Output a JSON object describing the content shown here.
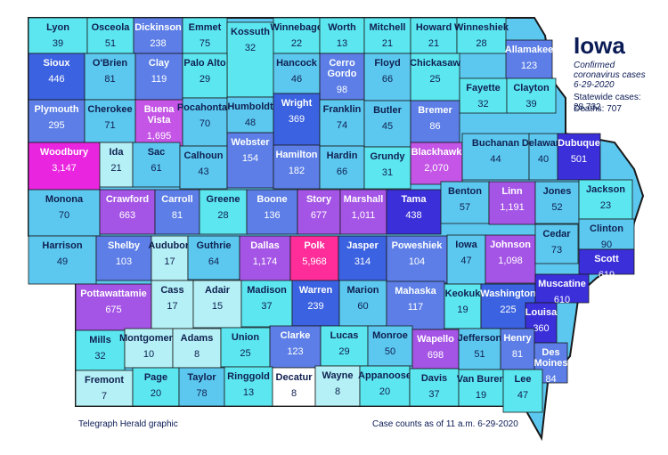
{
  "title": "Iowa",
  "subtitle_line1": "Confirmed",
  "subtitle_line2": "coronavirus cases",
  "date": "6-29-2020",
  "statewide_label": "Statewide cases: 28,732",
  "deaths_label": "Deaths:  707",
  "credit": "Telegraph Herald graphic",
  "as_of": "Case counts as of  11 a.m.  6-29-2020",
  "colors": {
    "border": "#1a1a1a",
    "text": "#0b1b55"
  },
  "counties": [
    {
      "name": "Lyon",
      "cases": "39"
    },
    {
      "name": "Osceola",
      "cases": "51"
    },
    {
      "name": "Dickinson",
      "cases": "238"
    },
    {
      "name": "Emmet",
      "cases": "75"
    },
    {
      "name": "Kossuth",
      "cases": "32"
    },
    {
      "name": "Winnebago",
      "cases": "22"
    },
    {
      "name": "Worth",
      "cases": "13"
    },
    {
      "name": "Mitchell",
      "cases": "21"
    },
    {
      "name": "Howard",
      "cases": "21"
    },
    {
      "name": "Winneshiek",
      "cases": "28"
    },
    {
      "name": "Allamakee",
      "cases": "123"
    },
    {
      "name": "Sioux",
      "cases": "446"
    },
    {
      "name": "O'Brien",
      "cases": "81"
    },
    {
      "name": "Clay",
      "cases": "119"
    },
    {
      "name": "Palo Alto",
      "cases": "29"
    },
    {
      "name": "Hancock",
      "cases": "46"
    },
    {
      "name": "Cerro Gordo",
      "cases": "98"
    },
    {
      "name": "Floyd",
      "cases": "66"
    },
    {
      "name": "Chickasaw",
      "cases": "25"
    },
    {
      "name": "Fayette",
      "cases": "32"
    },
    {
      "name": "Clayton",
      "cases": "39"
    },
    {
      "name": "Plymouth",
      "cases": "295"
    },
    {
      "name": "Cherokee",
      "cases": "71"
    },
    {
      "name": "Buena Vista",
      "cases": "1,695"
    },
    {
      "name": "Pocahontas",
      "cases": "70"
    },
    {
      "name": "Humboldt",
      "cases": "48"
    },
    {
      "name": "Wright",
      "cases": "369"
    },
    {
      "name": "Franklin",
      "cases": "74"
    },
    {
      "name": "Butler",
      "cases": "45"
    },
    {
      "name": "Bremer",
      "cases": "86"
    },
    {
      "name": "Woodbury",
      "cases": "3,147"
    },
    {
      "name": "Ida",
      "cases": "21"
    },
    {
      "name": "Sac",
      "cases": "61"
    },
    {
      "name": "Calhoun",
      "cases": "43"
    },
    {
      "name": "Webster",
      "cases": "154"
    },
    {
      "name": "Hamilton",
      "cases": "182"
    },
    {
      "name": "Hardin",
      "cases": "66"
    },
    {
      "name": "Grundy",
      "cases": "31"
    },
    {
      "name": "Blackhawk",
      "cases": "2,070"
    },
    {
      "name": "Buchanan",
      "cases": "44"
    },
    {
      "name": "Delaware",
      "cases": "40"
    },
    {
      "name": "Dubuque",
      "cases": "501"
    },
    {
      "name": "Monona",
      "cases": "70"
    },
    {
      "name": "Crawford",
      "cases": "663"
    },
    {
      "name": "Carroll",
      "cases": "81"
    },
    {
      "name": "Greene",
      "cases": "28"
    },
    {
      "name": "Boone",
      "cases": "136"
    },
    {
      "name": "Story",
      "cases": "677"
    },
    {
      "name": "Marshall",
      "cases": "1,011"
    },
    {
      "name": "Tama",
      "cases": "438"
    },
    {
      "name": "Benton",
      "cases": "57"
    },
    {
      "name": "Linn",
      "cases": "1,191"
    },
    {
      "name": "Jones",
      "cases": "52"
    },
    {
      "name": "Jackson",
      "cases": "23"
    },
    {
      "name": "Harrison",
      "cases": "49"
    },
    {
      "name": "Shelby",
      "cases": "103"
    },
    {
      "name": "Audubon",
      "cases": "17"
    },
    {
      "name": "Guthrie",
      "cases": "64"
    },
    {
      "name": "Dallas",
      "cases": "1,174"
    },
    {
      "name": "Polk",
      "cases": "5,968"
    },
    {
      "name": "Jasper",
      "cases": "314"
    },
    {
      "name": "Poweshiek",
      "cases": "104"
    },
    {
      "name": "Iowa",
      "cases": "47"
    },
    {
      "name": "Johnson",
      "cases": "1,098"
    },
    {
      "name": "Cedar",
      "cases": "73"
    },
    {
      "name": "Clinton",
      "cases": "90"
    },
    {
      "name": "Scott",
      "cases": "619"
    },
    {
      "name": "Pottawattamie",
      "cases": "675"
    },
    {
      "name": "Cass",
      "cases": "17"
    },
    {
      "name": "Adair",
      "cases": "15"
    },
    {
      "name": "Madison",
      "cases": "37"
    },
    {
      "name": "Warren",
      "cases": "239"
    },
    {
      "name": "Marion",
      "cases": "60"
    },
    {
      "name": "Mahaska",
      "cases": "117"
    },
    {
      "name": "Keokuk",
      "cases": "19"
    },
    {
      "name": "Washington",
      "cases": "225"
    },
    {
      "name": "Muscatine",
      "cases": "610"
    },
    {
      "name": "Louisa",
      "cases": "360"
    },
    {
      "name": "Mills",
      "cases": "32"
    },
    {
      "name": "Montgomery",
      "cases": "10"
    },
    {
      "name": "Adams",
      "cases": "8"
    },
    {
      "name": "Union",
      "cases": "25"
    },
    {
      "name": "Clarke",
      "cases": "123"
    },
    {
      "name": "Lucas",
      "cases": "29"
    },
    {
      "name": "Monroe",
      "cases": "50"
    },
    {
      "name": "Wapello",
      "cases": "698"
    },
    {
      "name": "Jefferson",
      "cases": "51"
    },
    {
      "name": "Henry",
      "cases": "81"
    },
    {
      "name": "Des Moines",
      "cases": "84"
    },
    {
      "name": "Fremont",
      "cases": "7"
    },
    {
      "name": "Page",
      "cases": "20"
    },
    {
      "name": "Taylor",
      "cases": "78"
    },
    {
      "name": "Ringgold",
      "cases": "13"
    },
    {
      "name": "Decatur",
      "cases": "8"
    },
    {
      "name": "Wayne",
      "cases": "8"
    },
    {
      "name": "Appanoose",
      "cases": "20"
    },
    {
      "name": "Davis",
      "cases": "37"
    },
    {
      "name": "Van Buren",
      "cases": "19"
    },
    {
      "name": "Lee",
      "cases": "47"
    }
  ]
}
